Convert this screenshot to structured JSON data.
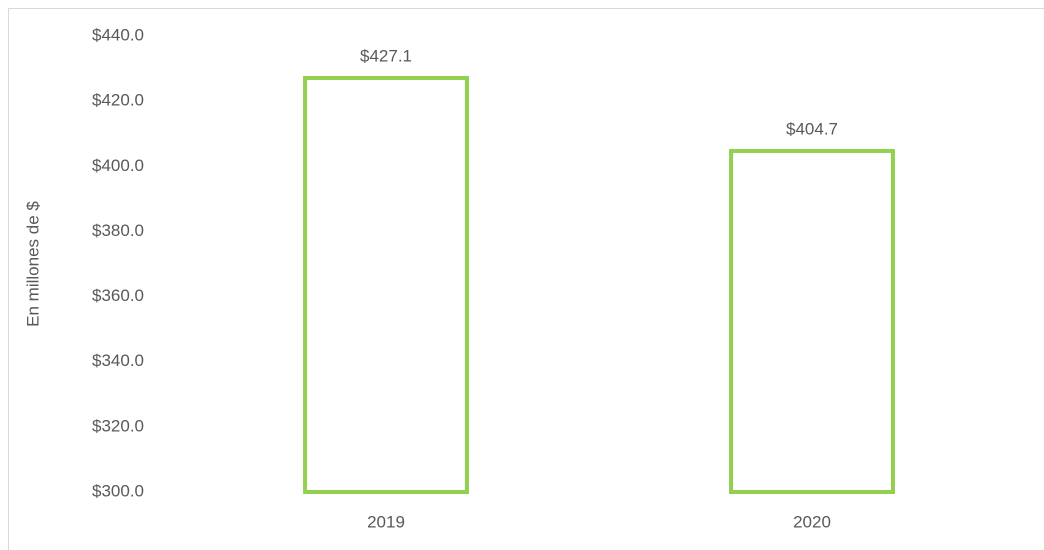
{
  "chart_data": {
    "type": "bar",
    "y_label": "En millones de $",
    "categories": [
      "2019",
      "2020"
    ],
    "values": [
      427.1,
      404.7
    ],
    "value_labels": [
      "$427.1",
      "$404.7"
    ],
    "color": "#92d050",
    "ylim": [
      300,
      440
    ],
    "yticks": [
      {
        "value": 300,
        "label": "$300.0"
      },
      {
        "value": 320,
        "label": "$320.0"
      },
      {
        "value": 340,
        "label": "$340.0"
      },
      {
        "value": 360,
        "label": "$360.0"
      },
      {
        "value": 380,
        "label": "$380.0"
      },
      {
        "value": 400,
        "label": "$400.0"
      },
      {
        "value": 420,
        "label": "$420.0"
      },
      {
        "value": 440,
        "label": "$440.0"
      }
    ],
    "grid": false
  }
}
